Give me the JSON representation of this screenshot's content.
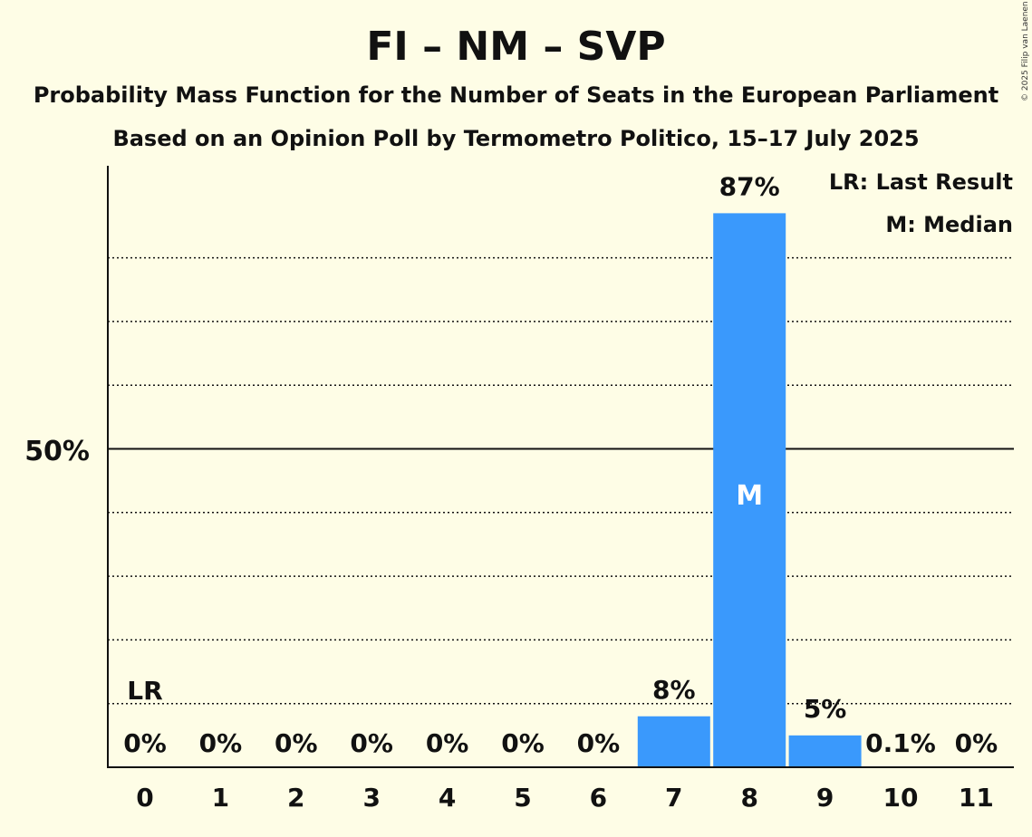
{
  "chart_data": {
    "type": "bar",
    "title": "FI – NM – SVP",
    "subtitle_1": "Probability Mass Function for the Number of Seats in the European Parliament",
    "subtitle_2": "Based on an Opinion Poll by Termometro Politico, 15–17 July 2025",
    "copyright": "© 2025 Filip van Laenen",
    "categories": [
      "0",
      "1",
      "2",
      "3",
      "4",
      "5",
      "6",
      "7",
      "8",
      "9",
      "10",
      "11"
    ],
    "values": [
      0,
      0,
      0,
      0,
      0,
      0,
      0,
      8,
      87,
      5,
      0.1,
      0
    ],
    "value_labels": [
      "0%",
      "0%",
      "0%",
      "0%",
      "0%",
      "0%",
      "0%",
      "8%",
      "87%",
      "5%",
      "0.1%",
      "0%"
    ],
    "ylim": [
      0,
      95
    ],
    "y_tick_label": "50%",
    "y_tick_value": 50,
    "gridlines": [
      10,
      20,
      30,
      40,
      60,
      70,
      80
    ],
    "last_result_index": 0,
    "last_result_marker": "LR",
    "median_index": 8,
    "median_marker": "M",
    "legend": [
      "LR: Last Result",
      "M: Median"
    ],
    "legend_position": "top-right",
    "bar_color": "#3a99fc"
  }
}
